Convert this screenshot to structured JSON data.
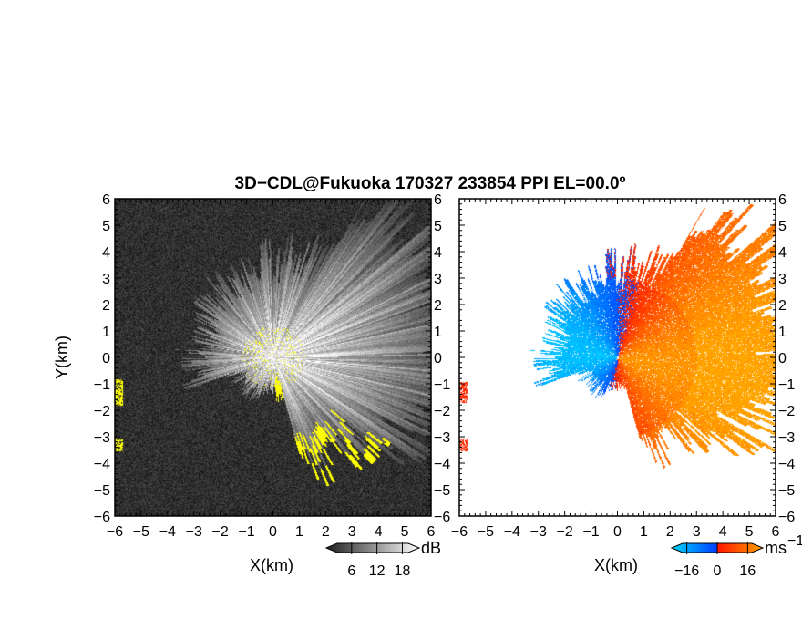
{
  "chart_data": [
    {
      "type": "heatmap",
      "title": "3D−CDL@Fukuoka 170327 233854 PPI EL=00.0º",
      "xlabel": "X(km)",
      "ylabel": "Y(km)",
      "xlim": [
        -6,
        6
      ],
      "ylim": [
        -6,
        6
      ],
      "xticks": [
        "−6",
        "−5",
        "−4",
        "−3",
        "−2",
        "−1",
        "0",
        "1",
        "2",
        "3",
        "4",
        "5",
        "6"
      ],
      "yticks": [
        "6",
        "5",
        "4",
        "3",
        "2",
        "1",
        "0",
        "−1",
        "−2",
        "−3",
        "−4",
        "−5",
        "−6"
      ],
      "colorbar": {
        "unit": "dB",
        "ticks": [
          "6",
          "12",
          "18"
        ],
        "tick_values": [
          6,
          12,
          18
        ],
        "range": [
          0,
          22
        ]
      },
      "colormap": [
        "#1e1e1e",
        "#ffffff"
      ],
      "mask_color": "#ffff00",
      "background": "#1e1e1e"
    },
    {
      "type": "heatmap",
      "xlabel": "X(km)",
      "xlim": [
        -6,
        6
      ],
      "ylim": [
        -6,
        6
      ],
      "xticks": [
        "−6",
        "−5",
        "−4",
        "−3",
        "−2",
        "−1",
        "0",
        "1",
        "2",
        "3",
        "4",
        "5",
        "6"
      ],
      "yticks": [
        "6",
        "5",
        "4",
        "3",
        "2",
        "1",
        "0",
        "−1",
        "−2",
        "−3",
        "−4",
        "−5",
        "−6"
      ],
      "colorbar": {
        "unit": "ms",
        "unit_exponent": "−1",
        "ticks": [
          "−16",
          "0",
          "16"
        ],
        "tick_values": [
          -16,
          0,
          16
        ],
        "range": [
          -24,
          24
        ]
      },
      "colormap": [
        "#00d8ff",
        "#0050ff",
        "#ff2000",
        "#ff9000"
      ],
      "background": "#ffffff"
    }
  ]
}
